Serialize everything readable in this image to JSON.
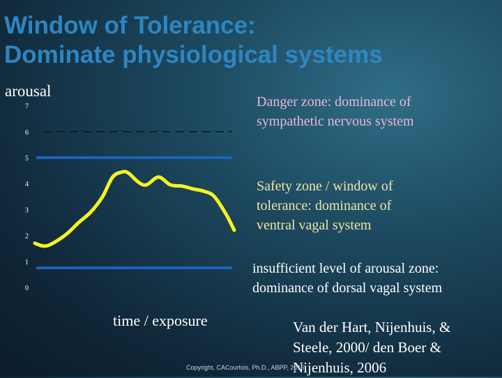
{
  "title": {
    "line1": "Window of Tolerance:",
    "line2": "Dominate physiological systems"
  },
  "zones": {
    "danger": {
      "line1": "Danger zone: dominance of",
      "line2": "sympathetic nervous system",
      "color": "#e8b8d8"
    },
    "safety": {
      "line1": "Safety zone  /  window of",
      "line2": "tolerance: dominance of",
      "line3": "ventral vagal system",
      "color": "#f2e6a8"
    },
    "insufficient": {
      "line1": "insufficient level of arousal zone:",
      "line2": "dominance of dorsal vagal system",
      "color": "#ffffff"
    }
  },
  "citation": {
    "line1": "Van der Hart, Nijenhuis, &",
    "line2": "Steele, 2000/ den Boer &",
    "line3": "Nijenhuis, 2006"
  },
  "copyright": "Copyright, CACourtois, Ph.D., ABPP, 2016",
  "chart_data": {
    "type": "line",
    "ylabel": "arousal",
    "xlabel": "time / exposure",
    "ylim": [
      0,
      7
    ],
    "yticks": [
      "0",
      "1",
      "2",
      "3",
      "4",
      "5",
      "6",
      "7"
    ],
    "grid": false,
    "series": [
      {
        "color": "#f5f522",
        "x": [
          0,
          0.06,
          0.15,
          0.22,
          0.28,
          0.34,
          0.39,
          0.44,
          0.47,
          0.52,
          0.56,
          0.62,
          0.68,
          0.74,
          0.79,
          0.85,
          0.9,
          0.96,
          1.0
        ],
        "y": [
          1.7,
          1.6,
          2.0,
          2.5,
          2.9,
          3.5,
          4.25,
          4.45,
          4.4,
          4.05,
          3.95,
          4.25,
          3.95,
          3.9,
          3.8,
          3.7,
          3.5,
          2.8,
          2.2
        ]
      }
    ],
    "reference_lines": [
      {
        "y": 6,
        "style": "dashed",
        "color": "#0c1620"
      },
      {
        "y": 5,
        "style": "solid",
        "color": "#1e62b8"
      },
      {
        "y": 0.75,
        "style": "solid",
        "color": "#1e62b8"
      }
    ]
  }
}
